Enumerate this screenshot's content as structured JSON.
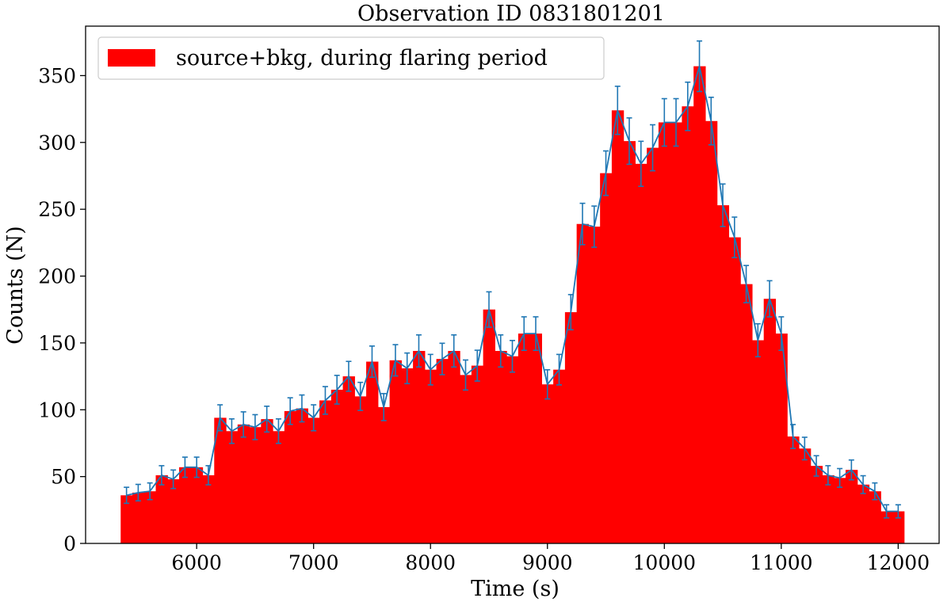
{
  "chart_data": {
    "type": "bar",
    "title": "Observation ID 0831801201",
    "xlabel": "Time (s)",
    "ylabel": "Counts (N)",
    "xlim": [
      5050,
      12350
    ],
    "ylim": [
      0,
      387
    ],
    "xticks": [
      6000,
      7000,
      8000,
      9000,
      10000,
      11000,
      12000
    ],
    "yticks": [
      0,
      50,
      100,
      150,
      200,
      250,
      300,
      350
    ],
    "bin_width": 100,
    "grid": false,
    "legend_position": "top-left",
    "series": [
      {
        "name": "source+bkg, during flaring period",
        "kind": "histogram",
        "color": "#ff0000",
        "x": [
          5400,
          5500,
          5600,
          5700,
          5800,
          5900,
          6000,
          6100,
          6200,
          6300,
          6400,
          6500,
          6600,
          6700,
          6800,
          6900,
          7000,
          7100,
          7200,
          7300,
          7400,
          7500,
          7600,
          7700,
          7800,
          7900,
          8000,
          8100,
          8200,
          8300,
          8400,
          8500,
          8600,
          8700,
          8800,
          8900,
          9000,
          9100,
          9200,
          9300,
          9400,
          9500,
          9600,
          9700,
          9800,
          9900,
          10000,
          10100,
          10200,
          10300,
          10400,
          10500,
          10600,
          10700,
          10800,
          10900,
          11000,
          11100,
          11200,
          11300,
          11400,
          11500,
          11600,
          11700,
          11800,
          11900,
          12000
        ],
        "values": [
          36,
          38,
          39,
          51,
          48,
          57,
          57,
          51,
          94,
          84,
          89,
          87,
          93,
          84,
          99,
          101,
          94,
          107,
          115,
          125,
          110,
          136,
          102,
          137,
          131,
          144,
          130,
          138,
          144,
          126,
          133,
          175,
          144,
          140,
          157,
          157,
          119,
          130,
          173,
          239,
          237,
          277,
          324,
          301,
          284,
          296,
          315,
          315,
          327,
          357,
          316,
          253,
          229,
          194,
          152,
          183,
          157,
          80,
          71,
          58,
          51,
          49,
          55,
          44,
          39,
          24,
          24
        ]
      },
      {
        "name": "",
        "kind": "line-errorbar",
        "color": "#1f77b4"
      }
    ]
  }
}
